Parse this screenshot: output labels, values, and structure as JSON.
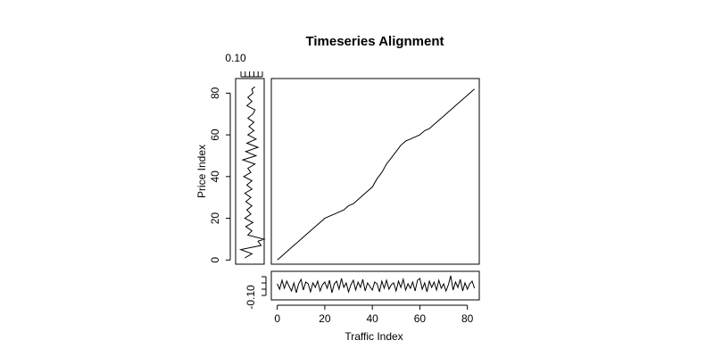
{
  "chart_data": {
    "type": "line",
    "title": "Timeseries Alignment",
    "xlabel": "Traffic Index",
    "ylabel": "Price Index",
    "main_plot": {
      "x_ticks": [
        "0",
        "20",
        "40",
        "60",
        "80"
      ],
      "y_ticks": [
        "0",
        "20",
        "40",
        "60",
        "80"
      ],
      "xlim": [
        -2.5,
        85
      ],
      "ylim": [
        -2,
        87
      ],
      "points": [
        [
          0,
          0
        ],
        [
          2,
          2
        ],
        [
          4,
          4
        ],
        [
          6,
          6
        ],
        [
          8,
          8
        ],
        [
          10,
          10
        ],
        [
          12,
          12
        ],
        [
          14,
          14
        ],
        [
          16,
          16
        ],
        [
          18,
          18
        ],
        [
          20,
          20
        ],
        [
          22,
          21
        ],
        [
          24,
          22
        ],
        [
          26,
          23
        ],
        [
          28,
          24
        ],
        [
          30,
          26
        ],
        [
          32,
          27
        ],
        [
          34,
          29
        ],
        [
          36,
          31
        ],
        [
          38,
          33
        ],
        [
          40,
          35
        ],
        [
          42,
          39
        ],
        [
          44,
          42
        ],
        [
          46,
          46
        ],
        [
          48,
          49
        ],
        [
          50,
          52
        ],
        [
          52,
          55
        ],
        [
          54,
          57
        ],
        [
          56,
          58
        ],
        [
          58,
          59
        ],
        [
          60,
          60
        ],
        [
          62,
          62
        ],
        [
          64,
          63
        ],
        [
          66,
          65
        ],
        [
          68,
          67
        ],
        [
          70,
          69
        ],
        [
          72,
          71
        ],
        [
          74,
          73
        ],
        [
          76,
          75
        ],
        [
          78,
          77
        ],
        [
          80,
          79
        ],
        [
          82,
          81
        ],
        [
          83,
          82
        ]
      ]
    },
    "top_margin": {
      "label": "0.10"
    },
    "left_series": {
      "xlim": [
        -0.14,
        0.14
      ],
      "ylim": [
        -2,
        87
      ],
      "points": [
        [
          -0.05,
          1
        ],
        [
          0.02,
          3
        ],
        [
          -0.09,
          5
        ],
        [
          0.11,
          7
        ],
        [
          0.08,
          9
        ],
        [
          0.14,
          10
        ],
        [
          -0.02,
          12
        ],
        [
          0.02,
          14
        ],
        [
          -0.04,
          16
        ],
        [
          0.03,
          18
        ],
        [
          -0.05,
          20
        ],
        [
          0.01,
          22
        ],
        [
          -0.03,
          24
        ],
        [
          0.02,
          26
        ],
        [
          -0.04,
          28
        ],
        [
          0.01,
          30
        ],
        [
          -0.05,
          32
        ],
        [
          0.02,
          34
        ],
        [
          -0.03,
          36
        ],
        [
          0.02,
          38
        ],
        [
          -0.06,
          40
        ],
        [
          0.01,
          42
        ],
        [
          -0.02,
          44
        ],
        [
          0.05,
          46
        ],
        [
          -0.07,
          48
        ],
        [
          0.06,
          50
        ],
        [
          -0.04,
          52
        ],
        [
          0.08,
          54
        ],
        [
          -0.03,
          56
        ],
        [
          0.06,
          58
        ],
        [
          -0.02,
          60
        ],
        [
          0.04,
          62
        ],
        [
          -0.01,
          64
        ],
        [
          0.04,
          66
        ],
        [
          -0.02,
          68
        ],
        [
          0.03,
          70
        ],
        [
          0.05,
          72
        ],
        [
          -0.03,
          74
        ],
        [
          0.02,
          76
        ],
        [
          -0.02,
          78
        ],
        [
          0.03,
          80
        ],
        [
          0.02,
          82
        ],
        [
          0.05,
          83
        ]
      ]
    },
    "bottom_series": {
      "y_ticks": [
        "-0.10"
      ],
      "ylim": [
        -0.16,
        0.16
      ],
      "xlim": [
        -2.5,
        85
      ],
      "values": [
        0.02,
        -0.04,
        0.06,
        -0.03,
        0.05,
        -0.01,
        -0.06,
        0.03,
        -0.08,
        0.02,
        0.07,
        -0.05,
        0.04,
        0.02,
        -0.07,
        0.03,
        -0.02,
        0.05,
        -0.06,
        0.01,
        0.04,
        -0.03,
        0.06,
        -0.08,
        0.02,
        0.05,
        -0.04,
        0.08,
        -0.02,
        0.03,
        -0.07,
        0.01,
        0.06,
        -0.05,
        0.04,
        -0.02,
        0.07,
        -0.06,
        0.03,
        -0.01,
        -0.05,
        0.04,
        0.02,
        -0.07,
        0.05,
        -0.03,
        0.06,
        -0.04,
        0.01,
        0.03,
        -0.06,
        0.05,
        -0.02,
        0.07,
        -0.05,
        0.02,
        -0.03,
        0.04,
        -0.06,
        0.06,
        0.08,
        -0.04,
        0.03,
        -0.07,
        0.05,
        -0.02,
        0.04,
        -0.05,
        0.06,
        -0.03,
        0.02,
        -0.06,
        0.01,
        0.11,
        -0.05,
        0.04,
        -0.02,
        0.07,
        -0.06,
        0.03,
        -0.04,
        0.02,
        0.05,
        -0.03
      ]
    }
  }
}
